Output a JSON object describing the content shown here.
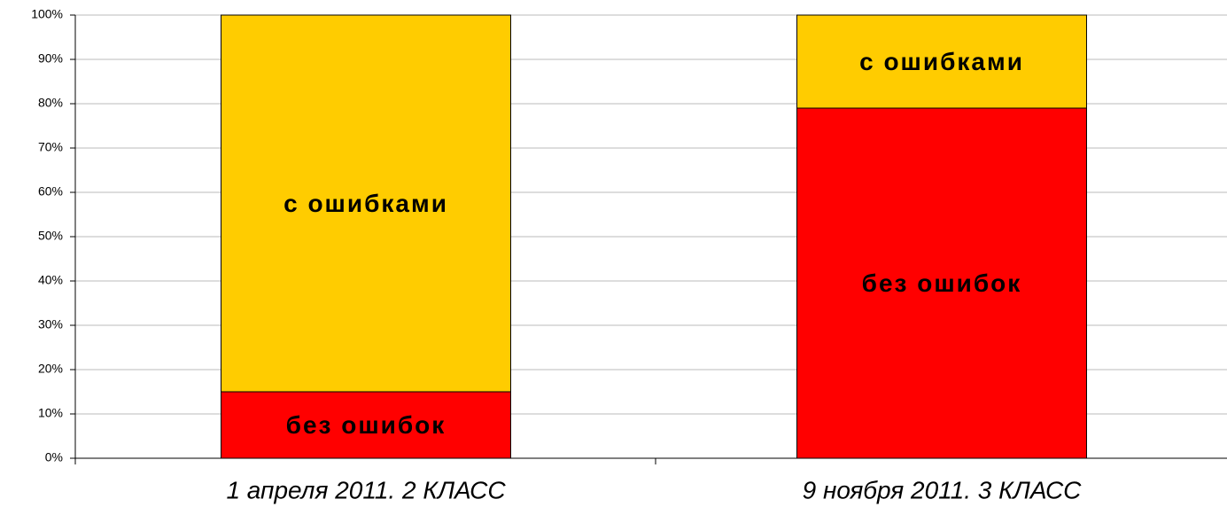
{
  "chart_data": {
    "type": "stacked_bar",
    "categories": [
      "1 апреля 2011. 2 КЛАСС",
      "9 ноября 2011. 3 КЛАСС"
    ],
    "series": [
      {
        "name": "без ошибок",
        "color": "#ff0000",
        "values": [
          15,
          79
        ]
      },
      {
        "name": "с ошибками",
        "color": "#ffcc00",
        "values": [
          85,
          21
        ]
      }
    ],
    "ylim": [
      0,
      100
    ],
    "yticks": [
      {
        "value": 0,
        "label": "0%"
      },
      {
        "value": 10,
        "label": "10%"
      },
      {
        "value": 20,
        "label": "20%"
      },
      {
        "value": 30,
        "label": "30%"
      },
      {
        "value": 40,
        "label": "40%"
      },
      {
        "value": 50,
        "label": "50%"
      },
      {
        "value": 60,
        "label": "60%"
      },
      {
        "value": 70,
        "label": "70%"
      },
      {
        "value": 80,
        "label": "80%"
      },
      {
        "value": 90,
        "label": "90%"
      },
      {
        "value": 100,
        "label": "100%"
      }
    ],
    "grid": true
  }
}
